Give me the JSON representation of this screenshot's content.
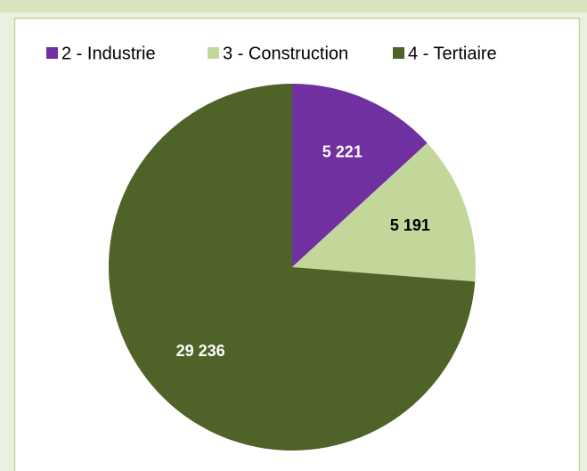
{
  "chart_data": {
    "type": "pie",
    "categories": [
      "2 - Industrie",
      "3 - Construction",
      "4 - Tertiaire"
    ],
    "values": [
      5221,
      5191,
      29236
    ],
    "value_labels": [
      "5 221",
      "5 191",
      "29 236"
    ],
    "colors": [
      "#7030a0",
      "#c4d79b",
      "#4f6228"
    ],
    "value_label_colors": [
      "#ffffff",
      "#000000",
      "#ffffff"
    ],
    "legend": "top"
  }
}
